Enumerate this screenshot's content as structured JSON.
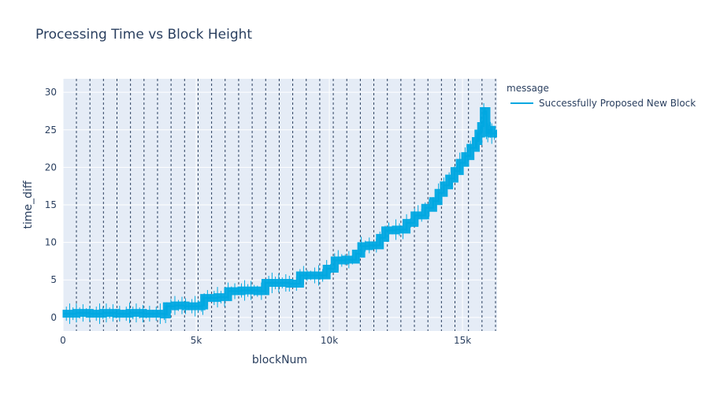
{
  "chart_data": {
    "type": "line",
    "title": "Processing Time vs Block Height",
    "xlabel": "blockNum",
    "ylabel": "time_diff",
    "xlim": [
      0,
      16300
    ],
    "ylim": [
      -1.8,
      31.8
    ],
    "xticks": [
      0,
      5000,
      10000,
      15000
    ],
    "xtick_labels": [
      "0",
      "5k",
      "10k",
      "15k"
    ],
    "yticks": [
      0,
      5,
      10,
      15,
      20,
      25,
      30
    ],
    "ytick_labels": [
      "0",
      "5",
      "10",
      "15",
      "20",
      "25",
      "30"
    ],
    "grid": true,
    "legend_title": "message",
    "legend_position": "right",
    "series": [
      {
        "name": "Successfully Proposed New Block",
        "color": "#00a8e1",
        "x": [
          0,
          500,
          1000,
          1500,
          2000,
          2500,
          3000,
          3500,
          3800,
          3900,
          4200,
          4600,
          5200,
          5300,
          5800,
          6200,
          6700,
          7300,
          7600,
          8100,
          8500,
          8900,
          9300,
          9600,
          9900,
          10200,
          10600,
          11000,
          11200,
          11500,
          11900,
          12100,
          12500,
          12900,
          13200,
          13600,
          13900,
          14100,
          14300,
          14500,
          14700,
          14900,
          15100,
          15300,
          15500,
          15600,
          15700,
          15800,
          15900,
          16000,
          16100,
          16300
        ],
        "y": [
          0.5,
          0.6,
          0.5,
          0.6,
          0.5,
          0.6,
          0.5,
          0.5,
          0.4,
          1.5,
          1.6,
          1.5,
          1.6,
          2.6,
          2.7,
          3.5,
          3.6,
          3.5,
          4.6,
          4.6,
          4.5,
          5.6,
          5.6,
          5.6,
          6.5,
          7.6,
          7.7,
          8.5,
          9.5,
          9.6,
          10.6,
          11.6,
          11.7,
          12.6,
          13.6,
          14.6,
          15.5,
          16.6,
          17.6,
          18.5,
          19.5,
          20.6,
          21.5,
          22.6,
          23.5,
          24.5,
          25.5,
          27.5,
          24.6,
          25.0,
          24.5,
          24.5
        ]
      }
    ]
  }
}
